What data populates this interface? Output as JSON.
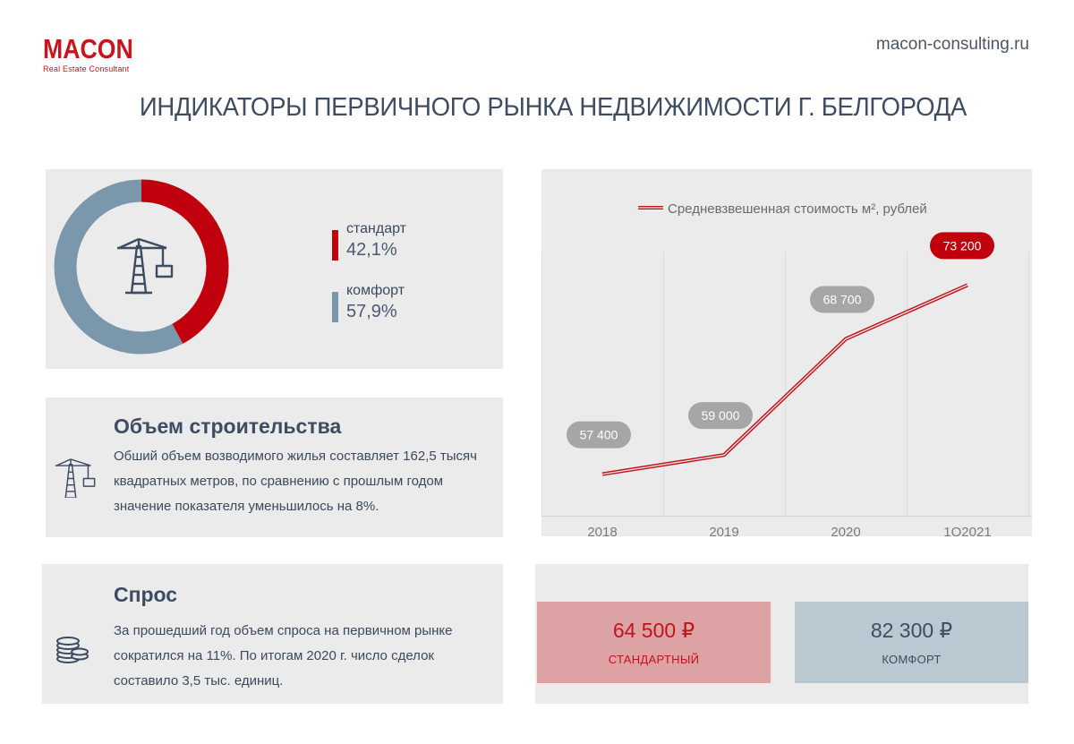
{
  "header": {
    "logo": "MACON",
    "logo_subtitle": "Real Estate Consultant",
    "site": "macon-consulting.ru",
    "title": "ИНДИКАТОРЫ ПЕРВИЧНОГО РЫНКА НЕДВИЖИМОСТИ Г. БЕЛГОРОДА"
  },
  "segments": {
    "standard": {
      "label": "стандарт",
      "value_text": "42,1%",
      "value": 42.1,
      "color": "#c0000c"
    },
    "comfort": {
      "label": "комфорт",
      "value_text": "57,9%",
      "value": 57.9,
      "color": "#7a97ab"
    },
    "center_icon": "crane-icon"
  },
  "construction": {
    "title": "Объем строительства",
    "text_lines": [
      "Обший объем возводимого жилья составляет 162,5 тысяч",
      "квадратных метров, по сравнению с прошлым годом",
      "значение показателя уменьшилось на 8%."
    ],
    "icon": "crane-icon"
  },
  "demand": {
    "title": "Спрос",
    "text_lines": [
      "За прошедший год объем спроса на первичном рынке",
      "сократился на 11%. По итогам 2020 г. число сделок",
      "составило 3,5 тыс. единиц."
    ],
    "icon": "coins-icon"
  },
  "chart_data": {
    "type": "line",
    "legend": "Средневзвешенная стоимость м², рублей",
    "legend_placement": "top",
    "categories": [
      "2018",
      "2019",
      "2020",
      "1Q2021"
    ],
    "series": [
      {
        "name": "Средневзвешенная стоимость м², рублей",
        "values": [
          57400,
          59000,
          68700,
          73200
        ],
        "labels": [
          "57 400",
          "59 000",
          "68 700",
          "73 200"
        ]
      }
    ],
    "ylim": [
      54000,
      76000
    ],
    "highlight_last": true,
    "colors": {
      "line": "#c0141c",
      "label_bg": "#a6a6a6",
      "label_highlight_bg": "#c0000c"
    }
  },
  "prices": {
    "standard": {
      "value": "64 500 ₽",
      "label": "СТАНДАРТНЫЙ",
      "bg": "#dda2a3",
      "color": "#c0141c"
    },
    "comfort": {
      "value": "82 300 ₽",
      "label": "КОМФОРТ",
      "bg": "#b9c8d1",
      "color": "#3e4c62"
    }
  }
}
